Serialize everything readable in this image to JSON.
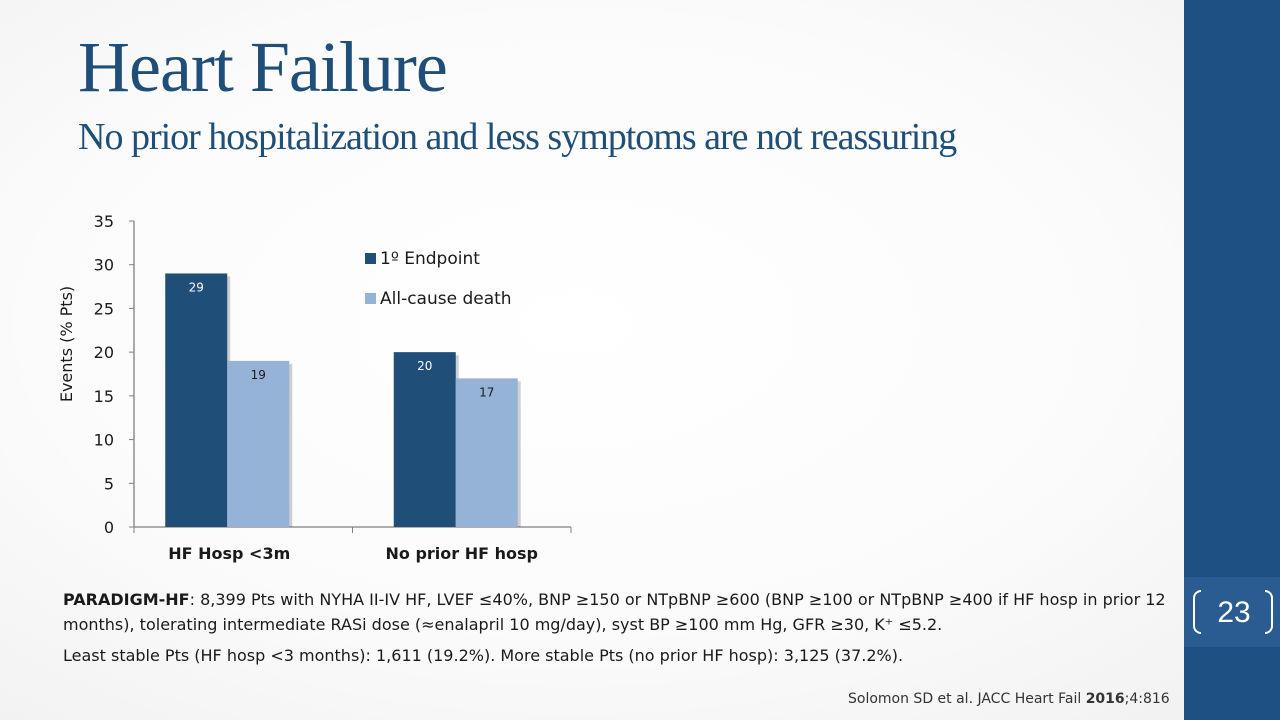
{
  "slide": {
    "title": "Heart Failure",
    "subtitle": "No prior hospitalization and less symptoms are not reassuring",
    "page_number": "23"
  },
  "description": {
    "line1_bold": "PARADIGM-HF",
    "line1_rest": ": 8,399 Pts with NYHA II-IV HF, LVEF ≤40%, BNP ≥150 or NTpBNP ≥600 (BNP ≥100 or NTpBNP ≥400 if HF hosp in prior 12 months), tolerating intermediate RASi dose (≈enalapril 10 mg/day), syst BP ≥100 mm Hg, GFR ≥30, K⁺ ≤5.2.",
    "line2": "Least stable Pts (HF hosp <3 months): 1,611 (19.2%). More stable Pts (no prior HF hosp): 3,125 (37.2%)."
  },
  "citation": {
    "text_before": "Solomon SD et al. JACC Heart Fail ",
    "year_bold": "2016",
    "text_after": ";4:816"
  },
  "colors": {
    "sidebar": "#1f5083",
    "title": "#1f4e79",
    "endpoint": "#1f4e79",
    "death": "#95b3d7"
  },
  "chart_data": {
    "type": "bar",
    "categories": [
      "HF Hosp <3m",
      "No prior HF hosp"
    ],
    "series": [
      {
        "name": "1º Endpoint",
        "values": [
          29,
          20
        ],
        "color": "#1f4e79"
      },
      {
        "name": "All-cause death",
        "values": [
          19,
          17
        ],
        "color": "#95b3d7"
      }
    ],
    "ylabel": "Events (% Pts)",
    "ylim": [
      0,
      35
    ],
    "yticks": [
      0,
      5,
      10,
      15,
      20,
      25,
      30,
      35
    ],
    "grid": false,
    "legend": "top-right"
  }
}
